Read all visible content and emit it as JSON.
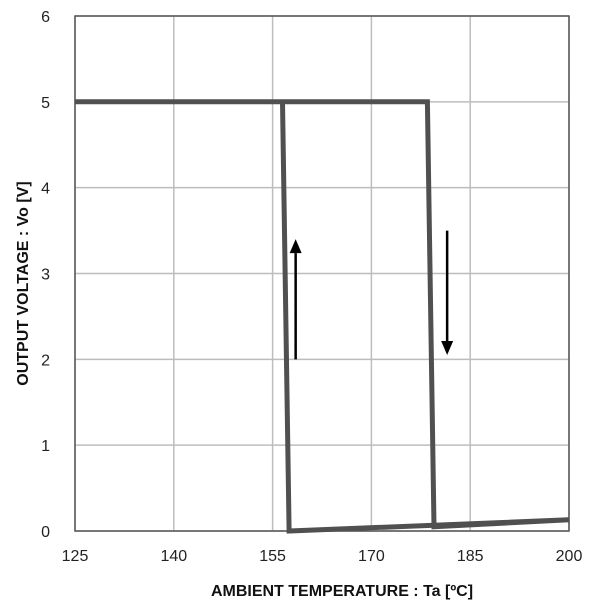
{
  "chart_data": {
    "type": "line",
    "xlabel": "AMBIENT  TEMPERATURE : Ta [ºC]",
    "ylabel": "OUTPUT VOLTAGE : Vo [V]",
    "xlim": [
      125,
      200
    ],
    "ylim": [
      0,
      6
    ],
    "x_ticks": [
      "125",
      "140",
      "155",
      "170",
      "185",
      "200"
    ],
    "y_ticks": [
      "0",
      "1",
      "2",
      "3",
      "4",
      "5",
      "6"
    ],
    "grid": true,
    "series": [
      {
        "color": "#505050",
        "points": [
          [
            125,
            5.0
          ],
          [
            178.5,
            5.0
          ],
          [
            179.5,
            0.05
          ],
          [
            200,
            0.13
          ],
          [
            157.5,
            0.0
          ],
          [
            156.5,
            5.0
          ]
        ]
      }
    ],
    "annotations": [
      {
        "type": "arrow",
        "direction": "up",
        "x": 158.5,
        "y_from": 2.0,
        "y_to": 3.4
      },
      {
        "type": "arrow",
        "direction": "down",
        "x": 181.5,
        "y_from": 3.5,
        "y_to": 2.05
      }
    ]
  }
}
